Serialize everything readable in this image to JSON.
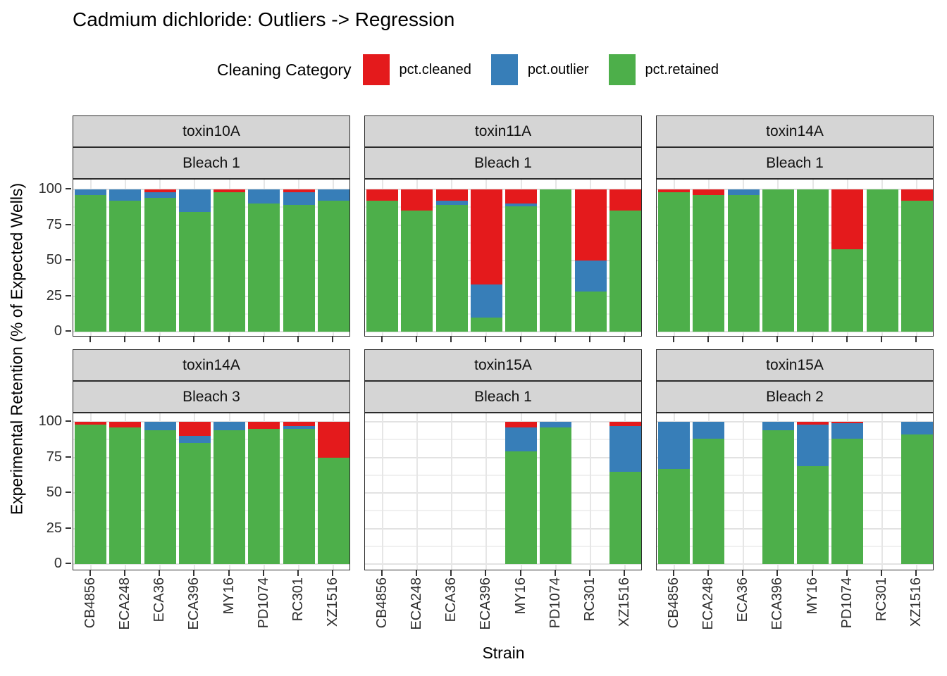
{
  "chart_data": {
    "type": "bar",
    "stacked": true,
    "title": "Cadmium dichloride: Outliers -> Regression",
    "xlabel": "Strain",
    "ylabel": "Experimental Retention (% of Expected Wells)",
    "ylim": [
      0,
      100
    ],
    "yticks": [
      0,
      25,
      50,
      75,
      100
    ],
    "grid": "major+minor horizontal, major vertical at category centers",
    "legend_position": "top",
    "legend": {
      "title": "Cleaning Category",
      "entries": [
        {
          "label": "pct.cleaned",
          "color": "#E41A1C"
        },
        {
          "label": "pct.outlier",
          "color": "#377EB8"
        },
        {
          "label": "pct.retained",
          "color": "#4DAF4A"
        }
      ]
    },
    "categories": [
      "CB4856",
      "ECA248",
      "ECA36",
      "ECA396",
      "MY16",
      "PD1074",
      "RC301",
      "XZ1516"
    ],
    "stack_order_bottom_to_top": [
      "pct.retained",
      "pct.outlier",
      "pct.cleaned"
    ],
    "facets": [
      {
        "toxin": "toxin10A",
        "bleach": "Bleach 1",
        "row": 0,
        "col": 0,
        "series": {
          "pct.retained": [
            96,
            92,
            94,
            84,
            98,
            90,
            89,
            92
          ],
          "pct.outlier": [
            4,
            8,
            4,
            16,
            0,
            10,
            9,
            8
          ],
          "pct.cleaned": [
            0,
            0,
            2,
            0,
            2,
            0,
            2,
            0
          ]
        }
      },
      {
        "toxin": "toxin11A",
        "bleach": "Bleach 1",
        "row": 0,
        "col": 1,
        "series": {
          "pct.retained": [
            92,
            85,
            89,
            10,
            88,
            100,
            28,
            85
          ],
          "pct.outlier": [
            0,
            0,
            3,
            23,
            2,
            0,
            22,
            0
          ],
          "pct.cleaned": [
            8,
            15,
            8,
            67,
            10,
            0,
            50,
            15
          ]
        }
      },
      {
        "toxin": "toxin14A",
        "bleach": "Bleach 1",
        "row": 0,
        "col": 2,
        "series": {
          "pct.retained": [
            98,
            96,
            96,
            100,
            100,
            58,
            100,
            92
          ],
          "pct.outlier": [
            0,
            0,
            4,
            0,
            0,
            0,
            0,
            0
          ],
          "pct.cleaned": [
            2,
            4,
            0,
            0,
            0,
            42,
            0,
            8
          ]
        }
      },
      {
        "toxin": "toxin14A",
        "bleach": "Bleach 3",
        "row": 1,
        "col": 0,
        "series": {
          "pct.retained": [
            98,
            96,
            94,
            85,
            94,
            95,
            95,
            75
          ],
          "pct.outlier": [
            0,
            0,
            6,
            5,
            6,
            0,
            2,
            0
          ],
          "pct.cleaned": [
            2,
            4,
            0,
            10,
            0,
            5,
            3,
            25
          ]
        }
      },
      {
        "toxin": "toxin15A",
        "bleach": "Bleach 1",
        "row": 1,
        "col": 1,
        "series": {
          "pct.retained": [
            null,
            null,
            null,
            null,
            79,
            96,
            null,
            65
          ],
          "pct.outlier": [
            null,
            null,
            null,
            null,
            17,
            4,
            null,
            32
          ],
          "pct.cleaned": [
            null,
            null,
            null,
            null,
            4,
            0,
            null,
            3
          ]
        }
      },
      {
        "toxin": "toxin15A",
        "bleach": "Bleach 2",
        "row": 1,
        "col": 2,
        "series": {
          "pct.retained": [
            67,
            88,
            null,
            94,
            69,
            88,
            null,
            91
          ],
          "pct.outlier": [
            33,
            12,
            null,
            6,
            29,
            11,
            null,
            9
          ],
          "pct.cleaned": [
            0,
            0,
            null,
            0,
            2,
            1,
            null,
            0
          ]
        }
      }
    ]
  }
}
